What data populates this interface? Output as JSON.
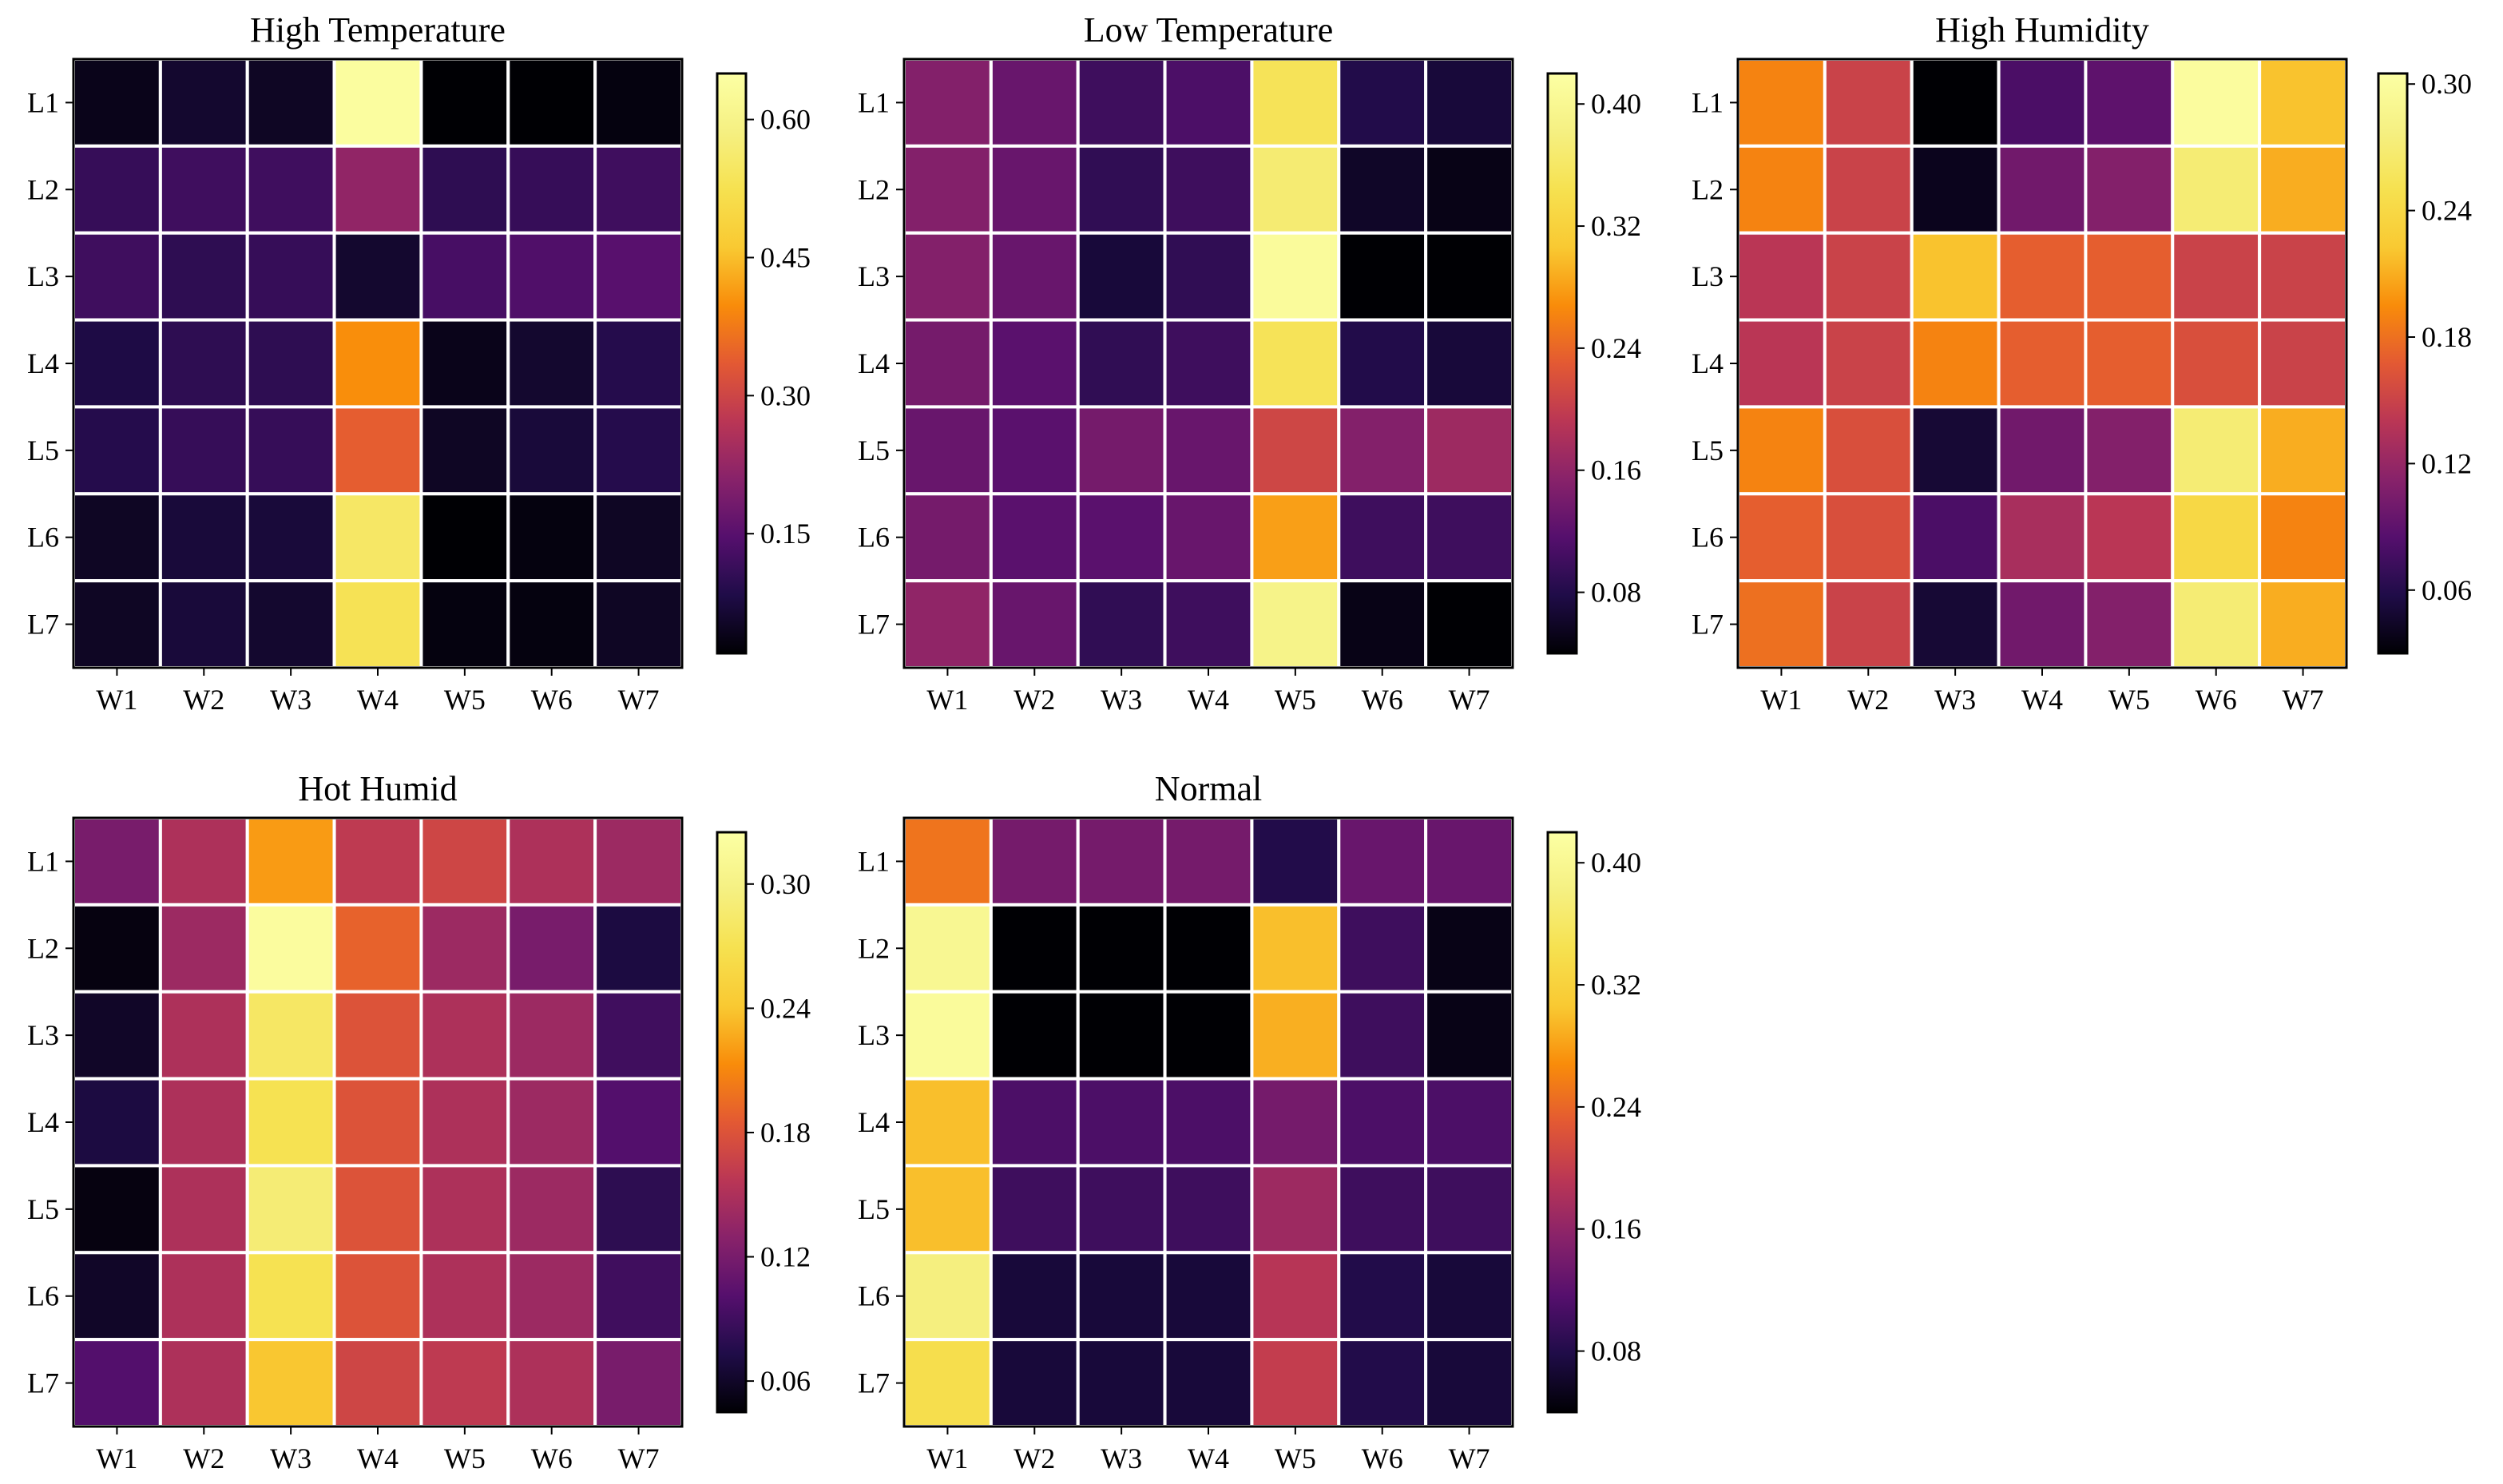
{
  "figure": {
    "background": "#ffffff",
    "grid_color": "#ffffff",
    "colormap": "inferno"
  },
  "chart_data": [
    {
      "type": "heatmap",
      "title": "High Temperature",
      "rows": [
        "L1",
        "L2",
        "L3",
        "L4",
        "L5",
        "L6",
        "L7"
      ],
      "cols": [
        "W1",
        "W2",
        "W3",
        "W4",
        "W5",
        "W6",
        "W7"
      ],
      "vmin": 0.02,
      "vmax": 0.65,
      "colorbar_ticks": [
        "0.15",
        "0.30",
        "0.45",
        "0.60"
      ],
      "values": [
        [
          0.04,
          0.06,
          0.05,
          0.64,
          0.02,
          0.02,
          0.03
        ],
        [
          0.11,
          0.12,
          0.12,
          0.22,
          0.1,
          0.11,
          0.12
        ],
        [
          0.12,
          0.1,
          0.11,
          0.06,
          0.13,
          0.14,
          0.15
        ],
        [
          0.08,
          0.1,
          0.1,
          0.4,
          0.04,
          0.06,
          0.09
        ],
        [
          0.09,
          0.11,
          0.11,
          0.34,
          0.05,
          0.07,
          0.09
        ],
        [
          0.05,
          0.07,
          0.07,
          0.55,
          0.02,
          0.03,
          0.05
        ],
        [
          0.05,
          0.07,
          0.06,
          0.53,
          0.03,
          0.03,
          0.05
        ]
      ]
    },
    {
      "type": "heatmap",
      "title": "Low Temperature",
      "rows": [
        "L1",
        "L2",
        "L3",
        "L4",
        "L5",
        "L6",
        "L7"
      ],
      "cols": [
        "W1",
        "W2",
        "W3",
        "W4",
        "W5",
        "W6",
        "W7"
      ],
      "vmin": 0.04,
      "vmax": 0.42,
      "colorbar_ticks": [
        "0.08",
        "0.16",
        "0.24",
        "0.32",
        "0.40"
      ],
      "values": [
        [
          0.15,
          0.13,
          0.1,
          0.11,
          0.35,
          0.08,
          0.07
        ],
        [
          0.15,
          0.13,
          0.09,
          0.1,
          0.37,
          0.06,
          0.05
        ],
        [
          0.15,
          0.13,
          0.07,
          0.09,
          0.41,
          0.04,
          0.04
        ],
        [
          0.14,
          0.12,
          0.09,
          0.1,
          0.35,
          0.08,
          0.07
        ],
        [
          0.13,
          0.12,
          0.14,
          0.13,
          0.21,
          0.15,
          0.17
        ],
        [
          0.14,
          0.12,
          0.12,
          0.13,
          0.28,
          0.1,
          0.1
        ],
        [
          0.16,
          0.13,
          0.09,
          0.1,
          0.39,
          0.05,
          0.04
        ]
      ]
    },
    {
      "type": "heatmap",
      "title": "High Humidity",
      "rows": [
        "L1",
        "L2",
        "L3",
        "L4",
        "L5",
        "L6",
        "L7"
      ],
      "cols": [
        "W1",
        "W2",
        "W3",
        "W4",
        "W5",
        "W6",
        "W7"
      ],
      "vmin": 0.03,
      "vmax": 0.305,
      "colorbar_ticks": [
        "0.06",
        "0.12",
        "0.18",
        "0.24",
        "0.30"
      ],
      "values": [
        [
          0.19,
          0.15,
          0.03,
          0.08,
          0.09,
          0.3,
          0.22
        ],
        [
          0.19,
          0.15,
          0.04,
          0.1,
          0.11,
          0.27,
          0.21
        ],
        [
          0.14,
          0.15,
          0.22,
          0.17,
          0.17,
          0.15,
          0.15
        ],
        [
          0.14,
          0.15,
          0.19,
          0.17,
          0.17,
          0.16,
          0.15
        ],
        [
          0.19,
          0.16,
          0.05,
          0.1,
          0.11,
          0.27,
          0.21
        ],
        [
          0.17,
          0.16,
          0.08,
          0.13,
          0.14,
          0.24,
          0.19
        ],
        [
          0.18,
          0.15,
          0.05,
          0.1,
          0.11,
          0.27,
          0.21
        ]
      ]
    },
    {
      "type": "heatmap",
      "title": "Hot Humid",
      "rows": [
        "L1",
        "L2",
        "L3",
        "L4",
        "L5",
        "L6",
        "L7"
      ],
      "cols": [
        "W1",
        "W2",
        "W3",
        "W4",
        "W5",
        "W6",
        "W7"
      ],
      "vmin": 0.045,
      "vmax": 0.325,
      "colorbar_ticks": [
        "0.06",
        "0.12",
        "0.18",
        "0.24",
        "0.30"
      ],
      "values": [
        [
          0.12,
          0.15,
          0.22,
          0.16,
          0.17,
          0.15,
          0.14
        ],
        [
          0.05,
          0.14,
          0.32,
          0.19,
          0.14,
          0.12,
          0.07
        ],
        [
          0.06,
          0.15,
          0.28,
          0.18,
          0.15,
          0.14,
          0.09
        ],
        [
          0.07,
          0.15,
          0.27,
          0.18,
          0.15,
          0.14,
          0.1
        ],
        [
          0.05,
          0.15,
          0.29,
          0.18,
          0.15,
          0.14,
          0.08
        ],
        [
          0.06,
          0.15,
          0.27,
          0.18,
          0.15,
          0.14,
          0.09
        ],
        [
          0.1,
          0.15,
          0.24,
          0.17,
          0.16,
          0.15,
          0.12
        ]
      ]
    },
    {
      "type": "heatmap",
      "title": "Normal",
      "rows": [
        "L1",
        "L2",
        "L3",
        "L4",
        "L5",
        "L6",
        "L7"
      ],
      "cols": [
        "W1",
        "W2",
        "W3",
        "W4",
        "W5",
        "W6",
        "W7"
      ],
      "vmin": 0.04,
      "vmax": 0.42,
      "colorbar_ticks": [
        "0.08",
        "0.16",
        "0.24",
        "0.32",
        "0.40"
      ],
      "values": [
        [
          0.25,
          0.14,
          0.14,
          0.14,
          0.08,
          0.13,
          0.13
        ],
        [
          0.4,
          0.04,
          0.04,
          0.04,
          0.3,
          0.1,
          0.05
        ],
        [
          0.41,
          0.04,
          0.04,
          0.04,
          0.29,
          0.1,
          0.05
        ],
        [
          0.3,
          0.11,
          0.11,
          0.11,
          0.14,
          0.11,
          0.11
        ],
        [
          0.3,
          0.1,
          0.1,
          0.1,
          0.17,
          0.1,
          0.1
        ],
        [
          0.38,
          0.07,
          0.07,
          0.07,
          0.19,
          0.08,
          0.07
        ],
        [
          0.34,
          0.07,
          0.07,
          0.07,
          0.2,
          0.08,
          0.07
        ]
      ]
    }
  ]
}
